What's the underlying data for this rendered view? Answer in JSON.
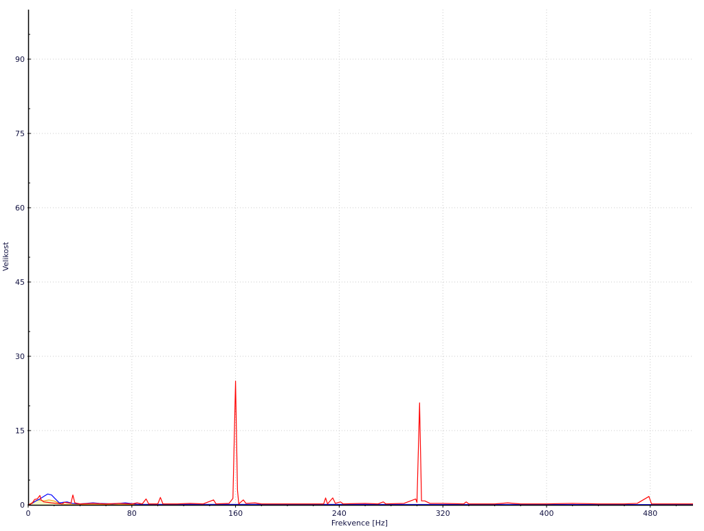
{
  "chart_data": {
    "type": "line",
    "title": "",
    "xlabel": "Frekvence [Hz]",
    "ylabel": "Velikost",
    "xlim": [
      0,
      513
    ],
    "ylim": [
      0,
      100
    ],
    "xticks": [
      0,
      80,
      160,
      240,
      320,
      400,
      480
    ],
    "yticks": [
      0,
      15,
      30,
      45,
      60,
      75,
      90
    ],
    "grid": true,
    "colors": {
      "red": "#ff0000",
      "blue": "#0000ff",
      "fill": "#f2f8c8",
      "fill_line": "#f0a020",
      "grid": "#c8c8c8"
    },
    "series": [
      {
        "color": "#f0a020",
        "fill": true,
        "points": [
          [
            0,
            0
          ],
          [
            4,
            0.6
          ],
          [
            8,
            1.0
          ],
          [
            12,
            0.8
          ],
          [
            16,
            1.0
          ],
          [
            20,
            0.8
          ],
          [
            24,
            0.3
          ],
          [
            28,
            0.1
          ],
          [
            40,
            0.1
          ],
          [
            513,
            0
          ]
        ]
      },
      {
        "color": "#0000ff",
        "points": [
          [
            0,
            0
          ],
          [
            3,
            0.3
          ],
          [
            6,
            0.8
          ],
          [
            9,
            1.2
          ],
          [
            12,
            1.7
          ],
          [
            15,
            2.2
          ],
          [
            18,
            2.0
          ],
          [
            21,
            1.2
          ],
          [
            24,
            0.4
          ],
          [
            27,
            0.5
          ],
          [
            30,
            0.6
          ],
          [
            34,
            0.3
          ],
          [
            40,
            0.2
          ],
          [
            50,
            0.4
          ],
          [
            55,
            0.3
          ],
          [
            65,
            0.2
          ],
          [
            75,
            0.4
          ],
          [
            85,
            0.1
          ],
          [
            100,
            0.1
          ],
          [
            513,
            0.05
          ]
        ]
      },
      {
        "color": "#ff0000",
        "points": [
          [
            0,
            0
          ],
          [
            3,
            0.3
          ],
          [
            5,
            1.1
          ],
          [
            7,
            1.2
          ],
          [
            9,
            1.9
          ],
          [
            10,
            1.0
          ],
          [
            12,
            0.6
          ],
          [
            15,
            0.5
          ],
          [
            18,
            0.4
          ],
          [
            22,
            0.3
          ],
          [
            26,
            0.2
          ],
          [
            28,
            0.5
          ],
          [
            31,
            0.4
          ],
          [
            33,
            0.3
          ],
          [
            34.5,
            2.0
          ],
          [
            36,
            0.4
          ],
          [
            40,
            0.2
          ],
          [
            50,
            0.3
          ],
          [
            60,
            0.2
          ],
          [
            70,
            0.3
          ],
          [
            80,
            0.2
          ],
          [
            84,
            0.4
          ],
          [
            88,
            0.2
          ],
          [
            91,
            1.2
          ],
          [
            93,
            0.2
          ],
          [
            100,
            0.2
          ],
          [
            102,
            1.5
          ],
          [
            104,
            0.2
          ],
          [
            115,
            0.2
          ],
          [
            125,
            0.3
          ],
          [
            135,
            0.2
          ],
          [
            143,
            1.0
          ],
          [
            145,
            0.2
          ],
          [
            155,
            0.3
          ],
          [
            158,
            1.3
          ],
          [
            160,
            25
          ],
          [
            161.5,
            3
          ],
          [
            162.5,
            0.2
          ],
          [
            166,
            1.0
          ],
          [
            168,
            0.3
          ],
          [
            175,
            0.4
          ],
          [
            180,
            0.2
          ],
          [
            200,
            0.2
          ],
          [
            220,
            0.2
          ],
          [
            228,
            0.2
          ],
          [
            229.5,
            1.4
          ],
          [
            231,
            0.2
          ],
          [
            235,
            1.4
          ],
          [
            237,
            0.3
          ],
          [
            241,
            0.6
          ],
          [
            243,
            0.2
          ],
          [
            260,
            0.3
          ],
          [
            270,
            0.2
          ],
          [
            274,
            0.6
          ],
          [
            276,
            0.2
          ],
          [
            290,
            0.3
          ],
          [
            299,
            1.2
          ],
          [
            300,
            0.5
          ],
          [
            302,
            20.6
          ],
          [
            303.5,
            0.8
          ],
          [
            306,
            0.8
          ],
          [
            310,
            0.3
          ],
          [
            320,
            0.3
          ],
          [
            336,
            0.2
          ],
          [
            338,
            0.6
          ],
          [
            340,
            0.2
          ],
          [
            360,
            0.2
          ],
          [
            370,
            0.4
          ],
          [
            380,
            0.2
          ],
          [
            400,
            0.2
          ],
          [
            420,
            0.3
          ],
          [
            440,
            0.2
          ],
          [
            460,
            0.2
          ],
          [
            470,
            0.3
          ],
          [
            479,
            1.7
          ],
          [
            481,
            0.2
          ],
          [
            500,
            0.2
          ],
          [
            513,
            0.2
          ]
        ]
      }
    ]
  }
}
